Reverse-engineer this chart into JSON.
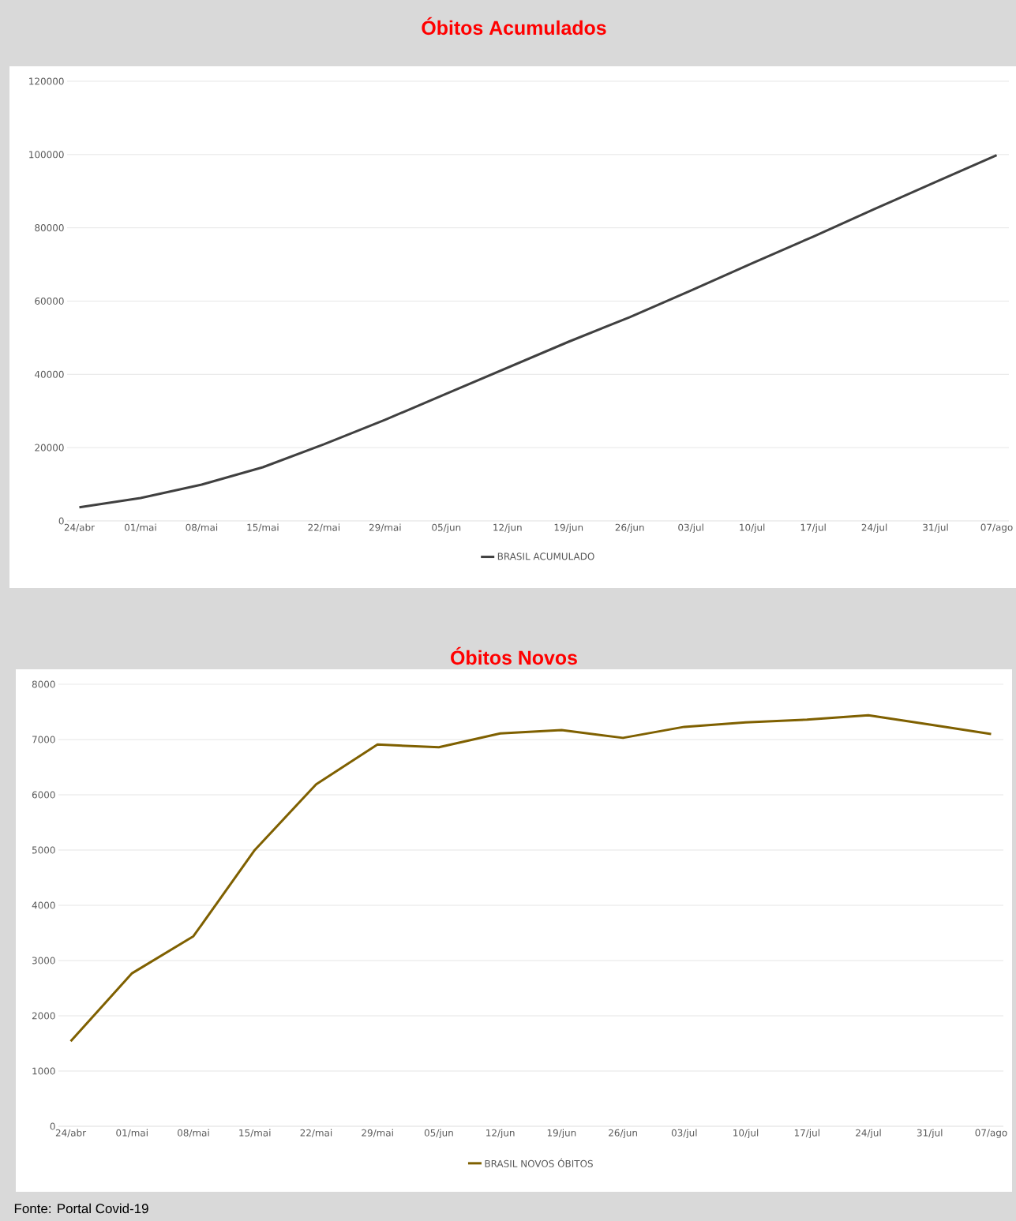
{
  "chart_data": [
    {
      "type": "line",
      "title": "Óbitos Acumulados",
      "categories": [
        "24/abr",
        "01/mai",
        "08/mai",
        "15/mai",
        "22/mai",
        "29/mai",
        "05/jun",
        "12/jun",
        "19/jun",
        "26/jun",
        "03/jul",
        "10/jul",
        "17/jul",
        "24/jul",
        "31/jul",
        "07/ago"
      ],
      "series": [
        {
          "name": "BRASIL ACUMULADO",
          "color": "#404040",
          "values": [
            3700,
            6250,
            9900,
            14650,
            20900,
            27600,
            34700,
            41800,
            48900,
            55600,
            62900,
            70300,
            77600,
            85100,
            92500,
            99800
          ]
        }
      ],
      "ylim": [
        0,
        120000
      ],
      "yticks": [
        0,
        20000,
        40000,
        60000,
        80000,
        100000,
        120000
      ],
      "grid": "y",
      "legend": "bottom",
      "marker": "none",
      "line_style": "solid"
    },
    {
      "type": "line",
      "title": "Óbitos Novos",
      "categories": [
        "24/abr",
        "01/mai",
        "08/mai",
        "15/mai",
        "22/mai",
        "29/mai",
        "05/jun",
        "12/jun",
        "19/jun",
        "26/jun",
        "03/jul",
        "10/jul",
        "17/jul",
        "24/jul",
        "31/jul",
        "07/ago"
      ],
      "series": [
        {
          "name": "BRASIL NOVOS ÓBITOS",
          "color": "#7f6000",
          "values": [
            1540,
            2770,
            3440,
            5000,
            6190,
            6910,
            6860,
            7110,
            7170,
            7030,
            7230,
            7310,
            7360,
            7440,
            7270,
            7100
          ]
        }
      ],
      "ylim": [
        0,
        8000
      ],
      "yticks": [
        0,
        1000,
        2000,
        3000,
        4000,
        5000,
        6000,
        7000,
        8000
      ],
      "grid": "y",
      "legend": "bottom",
      "marker": "none",
      "line_style": "solid",
      "annotations": [
        "Fonte: Portal Covid-19"
      ]
    }
  ]
}
